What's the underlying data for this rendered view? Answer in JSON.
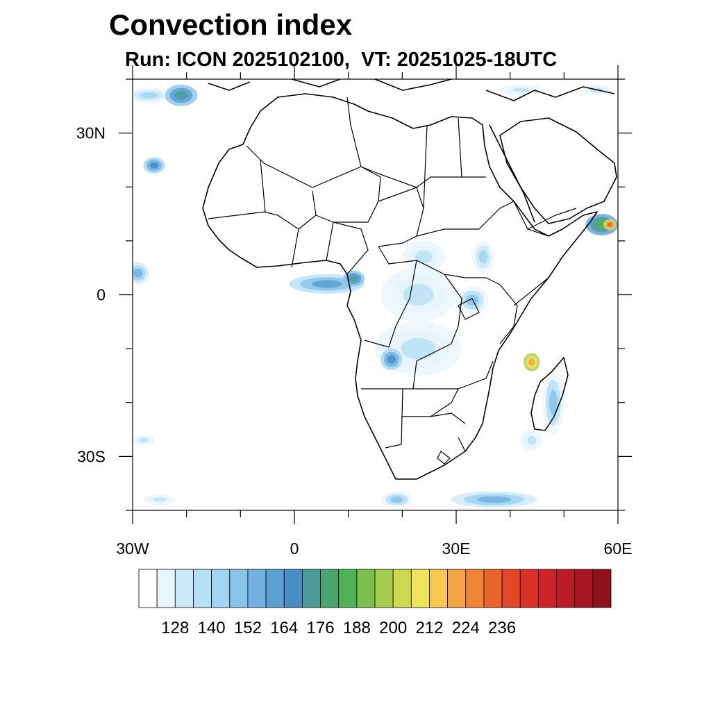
{
  "title": "Convection index",
  "subtitle": "Run: ICON 2025102100,  VT: 20251025-18UTC",
  "map": {
    "lon_range": [
      -30,
      60
    ],
    "lat_range": [
      -40,
      40
    ],
    "lon_ticks": [
      {
        "value": -30,
        "label": "30W"
      },
      {
        "value": 0,
        "label": "0"
      },
      {
        "value": 30,
        "label": "30E"
      },
      {
        "value": 60,
        "label": "60E"
      }
    ],
    "lat_ticks": [
      {
        "value": 30,
        "label": "30N"
      },
      {
        "value": 0,
        "label": "0"
      },
      {
        "value": -30,
        "label": "30S"
      }
    ],
    "minor_lon_step": 10,
    "minor_lat_step": 10
  },
  "colorbar": {
    "colors": [
      "#ffffff",
      "#e8f5fc",
      "#cde9f7",
      "#b6e0f5",
      "#9fd4f2",
      "#88c4ea",
      "#72b2e2",
      "#5c9fd3",
      "#4a8dc5",
      "#4c9b9b",
      "#46a66e",
      "#4db356",
      "#7bbf4d",
      "#a8cc4e",
      "#cfd94f",
      "#f0e45a",
      "#f8c851",
      "#f5a543",
      "#f08436",
      "#e8632d",
      "#e24728",
      "#d93127",
      "#cc2229",
      "#bb1a27",
      "#a51622",
      "#8c131b"
    ],
    "labels": [
      "128",
      "140",
      "152",
      "164",
      "176",
      "188",
      "200",
      "212",
      "224",
      "236"
    ],
    "label_boundary_index": [
      2,
      4,
      6,
      8,
      10,
      12,
      14,
      16,
      18,
      20
    ]
  },
  "convection_cells": [
    {
      "lon": -27,
      "lat": 37,
      "rx": 4,
      "ry": 1.4,
      "level": 4
    },
    {
      "lon": -21,
      "lat": 37,
      "rx": 3,
      "ry": 2,
      "level": 9
    },
    {
      "lon": -26,
      "lat": 24,
      "rx": 2,
      "ry": 1.5,
      "level": 8
    },
    {
      "lon": -29,
      "lat": 4,
      "rx": 2,
      "ry": 2,
      "level": 6
    },
    {
      "lon": 6,
      "lat": 2,
      "rx": 7,
      "ry": 1.8,
      "level": 7
    },
    {
      "lon": 11,
      "lat": 3,
      "rx": 2,
      "ry": 1.5,
      "level": 9
    },
    {
      "lon": 24,
      "lat": 7,
      "rx": 4,
      "ry": 3,
      "level": 3
    },
    {
      "lon": 23,
      "lat": 0,
      "rx": 7,
      "ry": 5,
      "level": 3
    },
    {
      "lon": 33,
      "lat": -1,
      "rx": 3,
      "ry": 2.5,
      "level": 5
    },
    {
      "lon": 35,
      "lat": 7,
      "rx": 2,
      "ry": 3,
      "level": 4
    },
    {
      "lon": 23,
      "lat": -10,
      "rx": 8,
      "ry": 5,
      "level": 3
    },
    {
      "lon": 18,
      "lat": -12,
      "rx": 2,
      "ry": 2,
      "level": 8
    },
    {
      "lon": 44,
      "lat": -12.5,
      "rx": 1.5,
      "ry": 1.7,
      "level": 17
    },
    {
      "lon": 48,
      "lat": -20,
      "rx": 2,
      "ry": 6,
      "level": 5
    },
    {
      "lon": 44,
      "lat": -27,
      "rx": 2,
      "ry": 2,
      "level": 3
    },
    {
      "lon": 57,
      "lat": 13,
      "rx": 3,
      "ry": 2,
      "level": 11
    },
    {
      "lon": 58.5,
      "lat": 13,
      "rx": 1.2,
      "ry": 1,
      "level": 19
    },
    {
      "lon": 37,
      "lat": -38,
      "rx": 8,
      "ry": 1.5,
      "level": 6
    },
    {
      "lon": 19,
      "lat": -38,
      "rx": 3,
      "ry": 1.5,
      "level": 5
    },
    {
      "lon": -25,
      "lat": -38,
      "rx": 3,
      "ry": 1,
      "level": 3
    },
    {
      "lon": -28,
      "lat": -27,
      "rx": 2,
      "ry": 1,
      "level": 3
    },
    {
      "lon": 42,
      "lat": 38,
      "rx": 4,
      "ry": 1,
      "level": 3
    },
    {
      "lon": 56,
      "lat": 38,
      "rx": 3,
      "ry": 1,
      "level": 3
    }
  ]
}
